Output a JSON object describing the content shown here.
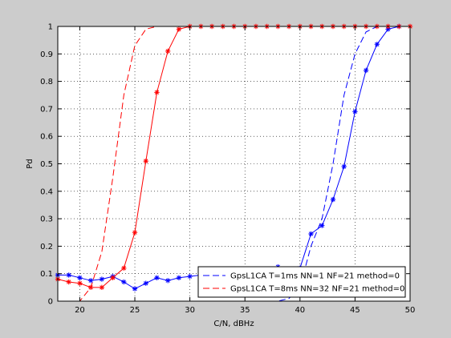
{
  "chart_data": {
    "type": "line",
    "xlabel": "C/N, dBHz",
    "ylabel": "Pd",
    "xlim": [
      18,
      50
    ],
    "ylim": [
      0,
      1
    ],
    "xticks": [
      20,
      25,
      30,
      35,
      40,
      45,
      50
    ],
    "yticks": [
      0,
      0.1,
      0.2,
      0.3,
      0.4,
      0.5,
      0.6,
      0.7,
      0.8,
      0.9,
      1
    ],
    "grid": true,
    "legend_position": "bottom-right",
    "series": [
      {
        "name": "GpsL1CA T=1ms NN=1 NF=21 method=0",
        "color": "#0000ff",
        "style": "dashed",
        "marker": "none",
        "x": [
          18,
          20,
          21,
          22,
          23,
          24,
          25,
          26,
          27,
          28,
          29,
          30,
          32,
          34,
          36,
          38,
          39,
          40,
          41,
          42,
          43,
          44,
          45,
          46,
          47,
          48,
          49,
          50
        ],
        "y": [
          0.0,
          0.0,
          0.0,
          0.0,
          0.0,
          0.0,
          0.0,
          0.0,
          0.0,
          0.0,
          0.0,
          0.0,
          0.0,
          0.0,
          0.0,
          0.0,
          0.01,
          0.05,
          0.2,
          0.3,
          0.5,
          0.75,
          0.9,
          0.98,
          1.0,
          1.0,
          1.0,
          1.0
        ]
      },
      {
        "name": "GpsL1CA T=8ms NN=32 NF=21 method=0",
        "color": "#ff0000",
        "style": "dashed",
        "marker": "none",
        "x": [
          18,
          19,
          20,
          21,
          22,
          23,
          24,
          25,
          26,
          27,
          28,
          29,
          30,
          35,
          40,
          45,
          50
        ],
        "y": [
          0.0,
          0.0,
          0.0,
          0.05,
          0.18,
          0.45,
          0.75,
          0.93,
          0.99,
          1.0,
          1.0,
          1.0,
          1.0,
          1.0,
          1.0,
          1.0,
          1.0
        ]
      },
      {
        "name": "",
        "color": "#0000ff",
        "style": "solid",
        "marker": "star",
        "x": [
          18,
          19,
          20,
          21,
          22,
          23,
          24,
          25,
          26,
          27,
          28,
          29,
          30,
          31,
          32,
          33,
          34,
          35,
          36,
          37,
          38,
          39,
          40,
          41,
          42,
          43,
          44,
          45,
          46,
          47,
          48,
          49
        ],
        "y": [
          0.095,
          0.095,
          0.085,
          0.075,
          0.08,
          0.09,
          0.07,
          0.045,
          0.065,
          0.085,
          0.075,
          0.085,
          0.09,
          0.095,
          0.095,
          0.09,
          0.095,
          0.1,
          0.105,
          0.11,
          0.125,
          0.11,
          0.12,
          0.245,
          0.275,
          0.37,
          0.49,
          0.69,
          0.84,
          0.935,
          0.99,
          1.0
        ]
      },
      {
        "name": "",
        "color": "#ff0000",
        "style": "solid",
        "marker": "star",
        "x": [
          18,
          19,
          20,
          21,
          22,
          23,
          24,
          25,
          26,
          27,
          28,
          29,
          30,
          31,
          32,
          33,
          34,
          35,
          36,
          37,
          38,
          39,
          40,
          41,
          42,
          43,
          44,
          45,
          46,
          47,
          48,
          49,
          50
        ],
        "y": [
          0.08,
          0.07,
          0.065,
          0.05,
          0.05,
          0.085,
          0.12,
          0.25,
          0.51,
          0.76,
          0.91,
          0.99,
          1.0,
          1.0,
          1.0,
          1.0,
          1.0,
          1.0,
          1.0,
          1.0,
          1.0,
          1.0,
          1.0,
          1.0,
          1.0,
          1.0,
          1.0,
          1.0,
          1.0,
          1.0,
          1.0,
          1.0,
          1.0
        ]
      }
    ]
  }
}
